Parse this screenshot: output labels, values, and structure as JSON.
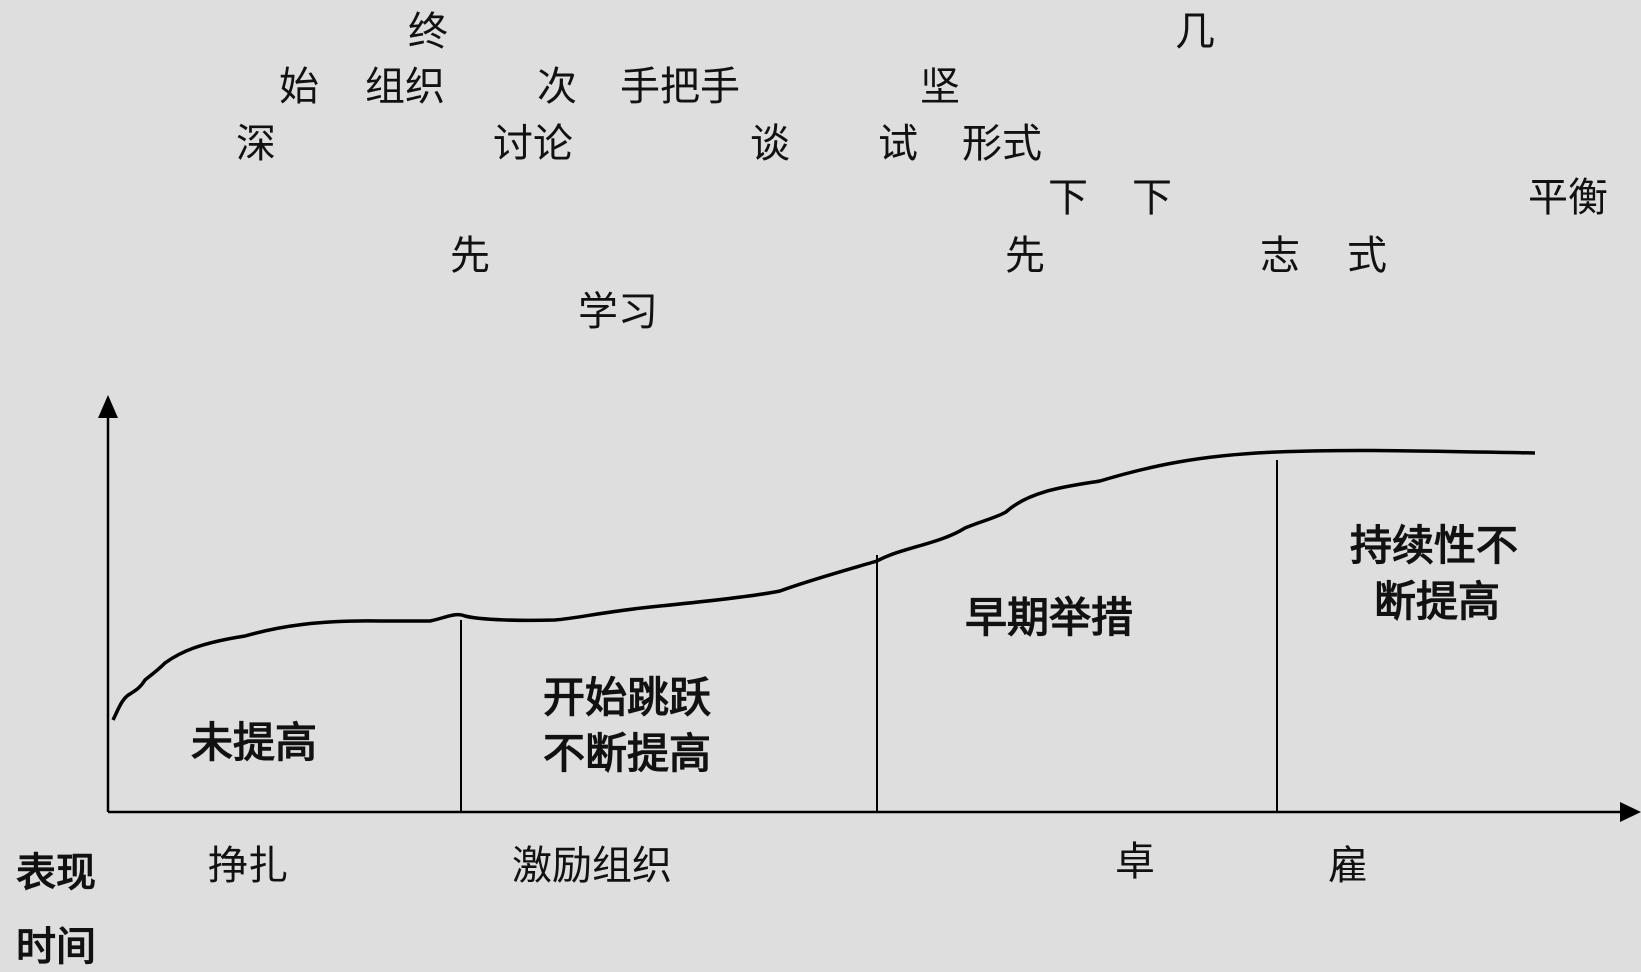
{
  "scattered_text": {
    "zhong": "终",
    "ji": "几",
    "shi": "始",
    "zuzhi_top": "组织",
    "ci": "次",
    "shoubashou": "手把手",
    "jian": "坚",
    "shen": "深",
    "taolun": "讨论",
    "tan": "谈",
    "shi_test": "试",
    "xingshi": "形式",
    "xia1": "下",
    "xia2": "下",
    "pingheng": "平衡",
    "xian1": "先",
    "xian2": "先",
    "zhi": "志",
    "shi_style": "式",
    "xuexi": "学习"
  },
  "phases": {
    "p1": "未提高",
    "p2_line1": "开始跳跃",
    "p2_line2": "不断提高",
    "p3": "早期举措",
    "p4_line1": "持续性不",
    "p4_line2": "断提高"
  },
  "bottom_text": {
    "zhengzha": "挣扎",
    "jili_zuzhi": "激励组织",
    "zhuo": "卓",
    "gu": "雇"
  },
  "axes": {
    "y_label": "表现",
    "x_label": "时间"
  },
  "colors": {
    "background": "#dedede",
    "ink": "#000000"
  }
}
